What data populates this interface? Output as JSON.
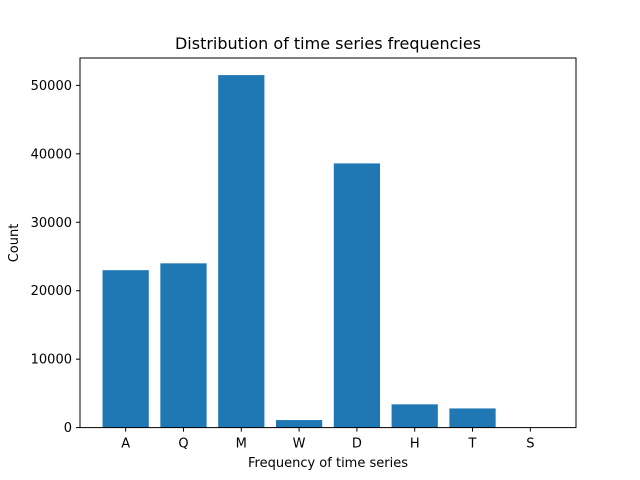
{
  "chart_data": {
    "type": "bar",
    "title": "Distribution of time series frequencies",
    "xlabel": "Frequency of time series",
    "ylabel": "Count",
    "categories": [
      "A",
      "Q",
      "M",
      "W",
      "D",
      "H",
      "T",
      "S"
    ],
    "values": [
      23000,
      24000,
      51500,
      1100,
      38600,
      3400,
      2800,
      0
    ],
    "ylim": [
      0,
      54000
    ],
    "yticks": [
      0,
      10000,
      20000,
      30000,
      40000,
      50000
    ],
    "ytick_labels": [
      "0",
      "10000",
      "20000",
      "30000",
      "40000",
      "50000"
    ],
    "bar_color": "#1f77b4",
    "grid": false,
    "legend": "none"
  }
}
